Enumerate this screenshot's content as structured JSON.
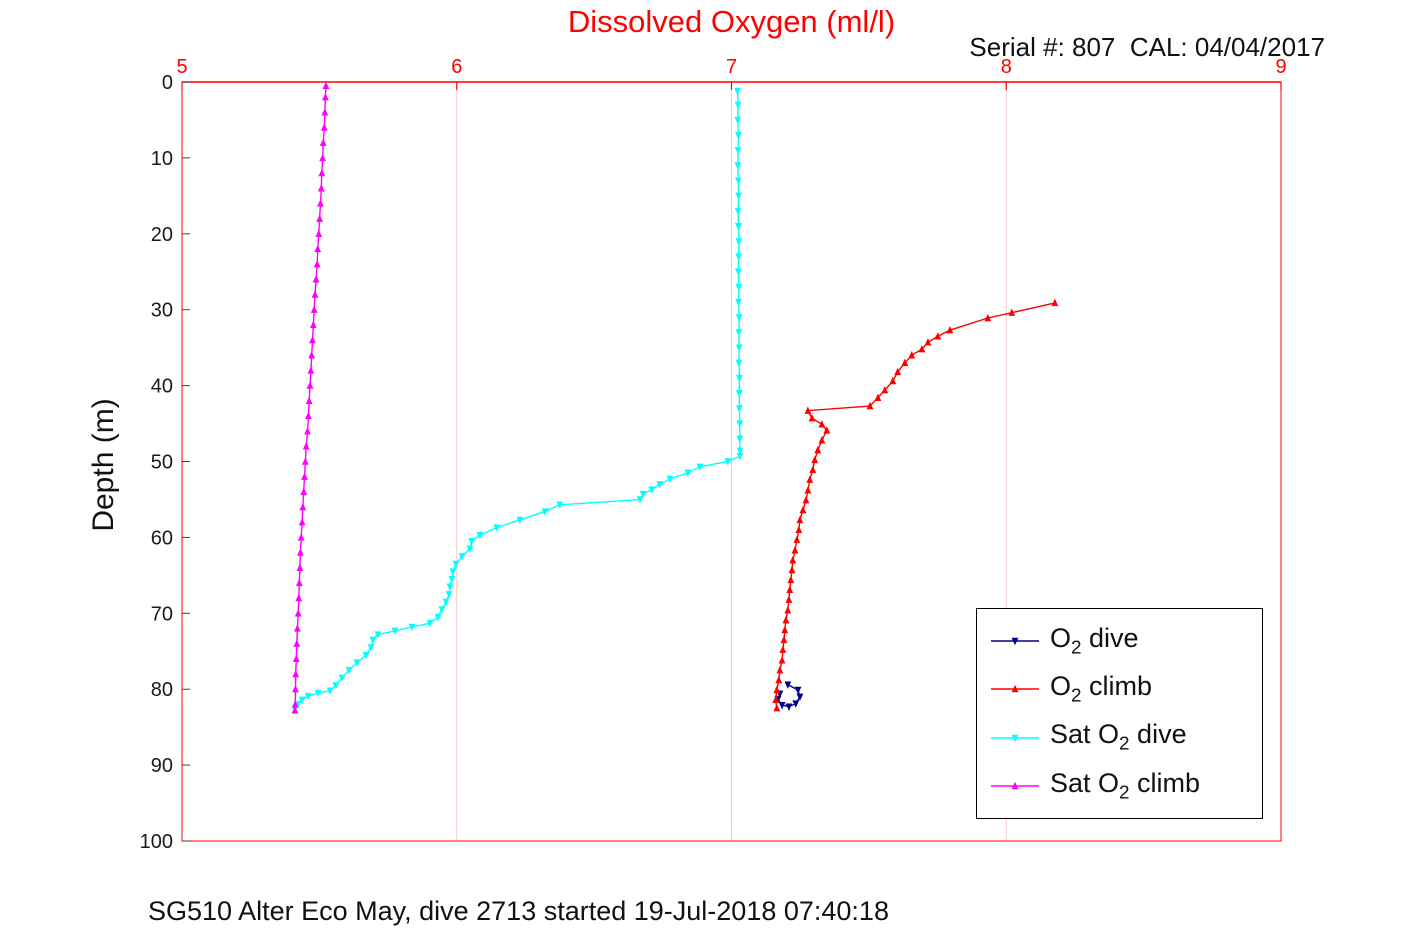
{
  "header": {
    "title": "Dissolved Oxygen (ml/l)",
    "serial_info": "Serial #: 807  CAL: 04/04/2017"
  },
  "caption": "SG510 Alter Eco May, dive 2713 started 19-Jul-2018 07:40:18",
  "colors": {
    "title": "#ff0000",
    "grid": "#f6caca",
    "axis_x": "#ff0000",
    "axis_y": "#404040",
    "tick_x": "#ff0000",
    "tick_y": "#1a1a1a"
  },
  "legend": {
    "items": [
      {
        "pre": "O",
        "sub": "2",
        "post": " dive"
      },
      {
        "pre": "O",
        "sub": "2",
        "post": " climb"
      },
      {
        "pre": "Sat O",
        "sub": "2",
        "post": " dive"
      },
      {
        "pre": "Sat O",
        "sub": "2",
        "post": " climb"
      }
    ]
  },
  "chart_data": {
    "type": "line",
    "title": "Dissolved Oxygen (ml/l)",
    "xlabel": "",
    "ylabel": "Depth (m)",
    "xlim": [
      5,
      9
    ],
    "ylim": [
      0,
      100
    ],
    "x_ticks": [
      5,
      6,
      7,
      8,
      9
    ],
    "y_ticks": [
      0,
      10,
      20,
      30,
      40,
      50,
      60,
      70,
      80,
      90,
      100
    ],
    "x_axis_location": "top",
    "y_increases_downward": true,
    "grid": "x-only",
    "legend_position": "lower-right-inside",
    "series": [
      {
        "name": "O2 dive",
        "color": "#00008b",
        "marker": "triangle-down",
        "points": [
          [
            7.205,
            79.4
          ],
          [
            7.242,
            80.1
          ],
          [
            7.249,
            81.0
          ],
          [
            7.234,
            81.9
          ],
          [
            7.209,
            82.3
          ],
          [
            7.184,
            82.1
          ],
          [
            7.169,
            81.3
          ],
          [
            7.176,
            80.6
          ]
        ]
      },
      {
        "name": "O2 climb",
        "color": "#ff0000",
        "marker": "triangle-up",
        "points": [
          [
            8.177,
            29.1
          ],
          [
            8.02,
            30.4
          ],
          [
            7.933,
            31.1
          ],
          [
            7.795,
            32.7
          ],
          [
            7.751,
            33.5
          ],
          [
            7.715,
            34.3
          ],
          [
            7.693,
            35.2
          ],
          [
            7.656,
            36.0
          ],
          [
            7.631,
            37.0
          ],
          [
            7.605,
            38.2
          ],
          [
            7.587,
            39.4
          ],
          [
            7.558,
            40.6
          ],
          [
            7.533,
            41.6
          ],
          [
            7.504,
            42.7
          ],
          [
            7.278,
            43.3
          ],
          [
            7.293,
            44.3
          ],
          [
            7.329,
            45.1
          ],
          [
            7.347,
            45.9
          ],
          [
            7.329,
            47.2
          ],
          [
            7.314,
            48.5
          ],
          [
            7.303,
            49.8
          ],
          [
            7.296,
            51.1
          ],
          [
            7.285,
            52.4
          ],
          [
            7.278,
            53.8
          ],
          [
            7.271,
            55.1
          ],
          [
            7.26,
            56.4
          ],
          [
            7.249,
            57.7
          ],
          [
            7.245,
            59.0
          ],
          [
            7.238,
            60.3
          ],
          [
            7.231,
            61.7
          ],
          [
            7.223,
            63.0
          ],
          [
            7.22,
            64.3
          ],
          [
            7.216,
            65.6
          ],
          [
            7.212,
            66.9
          ],
          [
            7.209,
            68.2
          ],
          [
            7.205,
            69.6
          ],
          [
            7.198,
            70.9
          ],
          [
            7.194,
            72.2
          ],
          [
            7.191,
            73.5
          ],
          [
            7.187,
            74.8
          ],
          [
            7.184,
            76.2
          ],
          [
            7.176,
            77.5
          ],
          [
            7.172,
            78.8
          ],
          [
            7.165,
            80.1
          ],
          [
            7.161,
            81.4
          ],
          [
            7.165,
            82.5
          ]
        ]
      },
      {
        "name": "Sat O2 dive",
        "color": "#00ffff",
        "marker": "triangle-down",
        "points": [
          [
            7.022,
            1.2
          ],
          [
            7.024,
            3
          ],
          [
            7.023,
            5
          ],
          [
            7.025,
            7
          ],
          [
            7.024,
            9
          ],
          [
            7.023,
            11
          ],
          [
            7.025,
            13
          ],
          [
            7.026,
            15
          ],
          [
            7.024,
            17
          ],
          [
            7.025,
            19
          ],
          [
            7.027,
            21
          ],
          [
            7.026,
            23
          ],
          [
            7.025,
            25
          ],
          [
            7.027,
            27
          ],
          [
            7.026,
            29
          ],
          [
            7.028,
            31
          ],
          [
            7.027,
            33
          ],
          [
            7.028,
            35
          ],
          [
            7.027,
            37
          ],
          [
            7.029,
            39
          ],
          [
            7.028,
            41
          ],
          [
            7.029,
            43
          ],
          [
            7.03,
            45
          ],
          [
            7.03,
            47
          ],
          [
            7.031,
            48.6
          ],
          [
            7.031,
            49.3
          ],
          [
            6.987,
            50
          ],
          [
            6.885,
            50.7
          ],
          [
            6.841,
            51.5
          ],
          [
            6.776,
            52.3
          ],
          [
            6.739,
            53
          ],
          [
            6.71,
            53.7
          ],
          [
            6.678,
            54.3
          ],
          [
            6.667,
            55
          ],
          [
            6.375,
            55.7
          ],
          [
            6.321,
            56.6
          ],
          [
            6.23,
            57.7
          ],
          [
            6.146,
            58.7
          ],
          [
            6.084,
            59.7
          ],
          [
            6.055,
            60.5
          ],
          [
            6.048,
            61.5
          ],
          [
            6.019,
            62.5
          ],
          [
            5.997,
            63.5
          ],
          [
            5.986,
            64.5
          ],
          [
            5.982,
            65.5
          ],
          [
            5.975,
            66.5
          ],
          [
            5.972,
            67.5
          ],
          [
            5.961,
            68.5
          ],
          [
            5.946,
            69.5
          ],
          [
            5.932,
            70.5
          ],
          [
            5.902,
            71.3
          ],
          [
            5.837,
            71.8
          ],
          [
            5.775,
            72.3
          ],
          [
            5.713,
            72.8
          ],
          [
            5.695,
            73.5
          ],
          [
            5.688,
            74.5
          ],
          [
            5.67,
            75.5
          ],
          [
            5.637,
            76.5
          ],
          [
            5.608,
            77.5
          ],
          [
            5.582,
            78.5
          ],
          [
            5.56,
            79.5
          ],
          [
            5.539,
            80.2
          ],
          [
            5.495,
            80.5
          ],
          [
            5.459,
            80.9
          ],
          [
            5.437,
            81.4
          ],
          [
            5.422,
            82
          ],
          [
            5.411,
            82.6
          ]
        ]
      },
      {
        "name": "Sat O2 climb",
        "color": "#ff00ff",
        "marker": "triangle-up",
        "points": [
          [
            5.524,
            0.5
          ],
          [
            5.522,
            2
          ],
          [
            5.52,
            4
          ],
          [
            5.518,
            6
          ],
          [
            5.514,
            8
          ],
          [
            5.512,
            10
          ],
          [
            5.509,
            12
          ],
          [
            5.507,
            14
          ],
          [
            5.504,
            16
          ],
          [
            5.501,
            18
          ],
          [
            5.498,
            20
          ],
          [
            5.494,
            22
          ],
          [
            5.492,
            24
          ],
          [
            5.488,
            26
          ],
          [
            5.484,
            28
          ],
          [
            5.481,
            30
          ],
          [
            5.478,
            32
          ],
          [
            5.475,
            34
          ],
          [
            5.472,
            36
          ],
          [
            5.469,
            38
          ],
          [
            5.466,
            40
          ],
          [
            5.463,
            42
          ],
          [
            5.46,
            44
          ],
          [
            5.457,
            46
          ],
          [
            5.452,
            48
          ],
          [
            5.449,
            50
          ],
          [
            5.446,
            52
          ],
          [
            5.443,
            54
          ],
          [
            5.44,
            56
          ],
          [
            5.437,
            58
          ],
          [
            5.434,
            60
          ],
          [
            5.431,
            62
          ],
          [
            5.429,
            64
          ],
          [
            5.427,
            66
          ],
          [
            5.425,
            68
          ],
          [
            5.423,
            70
          ],
          [
            5.42,
            72
          ],
          [
            5.418,
            74
          ],
          [
            5.416,
            76
          ],
          [
            5.414,
            78
          ],
          [
            5.413,
            80
          ],
          [
            5.412,
            82
          ],
          [
            5.411,
            82.8
          ]
        ]
      }
    ]
  }
}
